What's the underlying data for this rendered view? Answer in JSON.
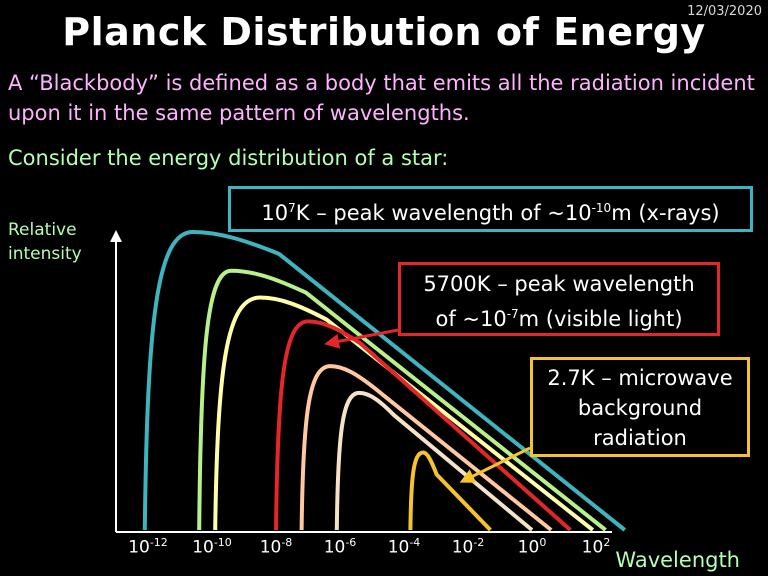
{
  "date": "12/03/2020",
  "title": "Planck Distribution of Energy",
  "intro": "A “Blackbody” is defined as a body that emits all the radiation incident upon it in the same pattern of wavelengths.",
  "consider": "Consider the energy distribution of a star:",
  "callouts": {
    "hot": {
      "pre": "10",
      "sup1": "7",
      "mid": "K – peak wavelength of ~10",
      "sup2": "-10",
      "post": "m (x-rays)",
      "color": "#3fb4be"
    },
    "sun": {
      "line1": "5700K – peak wavelength",
      "pre": "of ~10",
      "sup": "-7",
      "post": "m (visible light)",
      "color": "#e3262a"
    },
    "cmb": {
      "line1": "2.7K – microwave",
      "line2": "background",
      "line3": "radiation",
      "color": "#f5c32b"
    }
  },
  "chart_data": {
    "type": "line",
    "xlabel": "Wavelength",
    "ylabel": "Relative intensity",
    "x_scale": "log",
    "x_ticks": [
      {
        "base": "10",
        "exp": "-12"
      },
      {
        "base": "10",
        "exp": "-10"
      },
      {
        "base": "10",
        "exp": "-8"
      },
      {
        "base": "10",
        "exp": "-6"
      },
      {
        "base": "10",
        "exp": "-4"
      },
      {
        "base": "10",
        "exp": "-2"
      },
      {
        "base": "10",
        "exp": "0"
      },
      {
        "base": "10",
        "exp": "2"
      }
    ],
    "series": [
      {
        "color": "#3fb4be",
        "start": -12.1,
        "peak": -10.6,
        "end": 2.9,
        "height": 1.0
      },
      {
        "color": "#b8f08a",
        "start": -10.4,
        "peak": -9.4,
        "end": 2.3,
        "height": 0.87
      },
      {
        "color": "#ffffaa",
        "start": -9.9,
        "peak": -8.5,
        "end": 1.9,
        "height": 0.78
      },
      {
        "color": "#e3262a",
        "start": -8.0,
        "peak": -7.0,
        "end": 1.2,
        "height": 0.7
      },
      {
        "color": "#ffc8a0",
        "start": -7.2,
        "peak": -6.3,
        "end": 0.6,
        "height": 0.55
      },
      {
        "color": "#f5e3c8",
        "start": -6.1,
        "peak": -5.4,
        "end": 0.0,
        "height": 0.46
      },
      {
        "color": "#f5c32b",
        "start": -3.8,
        "peak": -3.4,
        "end": -1.3,
        "height": 0.26
      }
    ],
    "grid": false
  }
}
